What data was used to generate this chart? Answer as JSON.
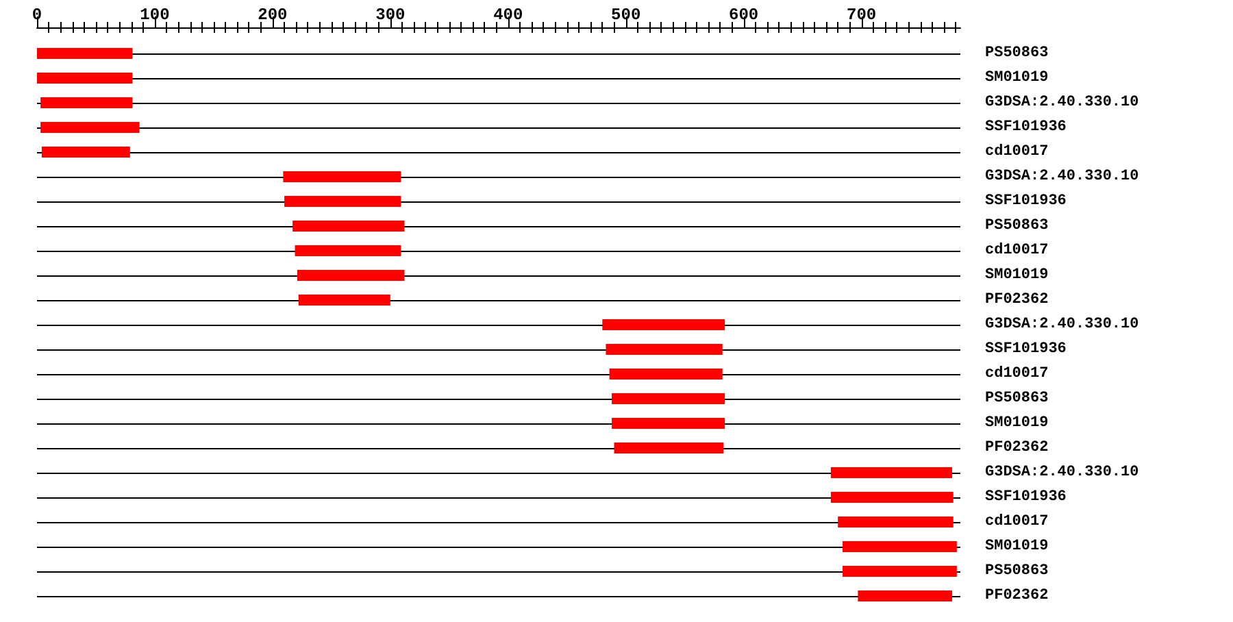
{
  "chart_data": {
    "type": "bar",
    "orientation": "horizontal",
    "categories": [
      "PS50863",
      "SM01019",
      "G3DSA:2.40.330.10",
      "SSF101936",
      "cd10017",
      "G3DSA:2.40.330.10",
      "SSF101936",
      "PS50863",
      "cd10017",
      "SM01019",
      "PF02362",
      "G3DSA:2.40.330.10",
      "SSF101936",
      "cd10017",
      "PS50863",
      "SM01019",
      "PF02362",
      "G3DSA:2.40.330.10",
      "SSF101936",
      "cd10017",
      "SM01019",
      "PS50863",
      "PF02362"
    ],
    "base": [
      0,
      0,
      3,
      3,
      4,
      209,
      210,
      217,
      219,
      221,
      222,
      480,
      483,
      486,
      488,
      488,
      490,
      674,
      674,
      680,
      684,
      684,
      697
    ],
    "values": [
      81,
      81,
      78,
      84,
      75,
      100,
      99,
      95,
      90,
      91,
      78,
      104,
      99,
      96,
      96,
      96,
      93,
      103,
      104,
      98,
      97,
      97,
      80
    ],
    "color": "#ff0000",
    "xlim": [
      0,
      784
    ],
    "xticks": [
      0,
      {
        "value": 10,
        "label": null
      },
      {
        "value": 20,
        "label": null
      },
      {
        "value": 30,
        "label": null
      },
      {
        "value": 40,
        "label": null
      },
      {
        "value": 50,
        "label": null
      },
      {
        "value": 60,
        "label": null
      },
      {
        "value": 70,
        "label": null
      },
      {
        "value": 80,
        "label": null
      },
      {
        "value": 90,
        "label": null
      },
      100,
      {
        "value": 110,
        "label": null
      },
      {
        "value": 120,
        "label": null
      },
      {
        "value": 130,
        "label": null
      },
      {
        "value": 140,
        "label": null
      },
      {
        "value": 150,
        "label": null
      },
      {
        "value": 160,
        "label": null
      },
      {
        "value": 170,
        "label": null
      },
      {
        "value": 180,
        "label": null
      },
      {
        "value": 190,
        "label": null
      },
      200,
      {
        "value": 210,
        "label": null
      },
      {
        "value": 220,
        "label": null
      },
      {
        "value": 230,
        "label": null
      },
      {
        "value": 240,
        "label": null
      },
      {
        "value": 250,
        "label": null
      },
      {
        "value": 260,
        "label": null
      },
      {
        "value": 270,
        "label": null
      },
      {
        "value": 280,
        "label": null
      },
      {
        "value": 290,
        "label": null
      },
      300,
      {
        "value": 310,
        "label": null
      },
      {
        "value": 320,
        "label": null
      },
      {
        "value": 330,
        "label": null
      },
      {
        "value": 340,
        "label": null
      },
      {
        "value": 350,
        "label": null
      },
      {
        "value": 360,
        "label": null
      },
      {
        "value": 370,
        "label": null
      },
      {
        "value": 380,
        "label": null
      },
      {
        "value": 390,
        "label": null
      },
      400,
      {
        "value": 410,
        "label": null
      },
      {
        "value": 420,
        "label": null
      },
      {
        "value": 430,
        "label": null
      },
      {
        "value": 440,
        "label": null
      },
      {
        "value": 450,
        "label": null
      },
      {
        "value": 460,
        "label": null
      },
      {
        "value": 470,
        "label": null
      },
      {
        "value": 480,
        "label": null
      },
      {
        "value": 490,
        "label": null
      },
      500,
      {
        "value": 510,
        "label": null
      },
      {
        "value": 520,
        "label": null
      },
      {
        "value": 530,
        "label": null
      },
      {
        "value": 540,
        "label": null
      },
      {
        "value": 550,
        "label": null
      },
      {
        "value": 560,
        "label": null
      },
      {
        "value": 570,
        "label": null
      },
      {
        "value": 580,
        "label": null
      },
      {
        "value": 590,
        "label": null
      },
      600,
      {
        "value": 610,
        "label": null
      },
      {
        "value": 620,
        "label": null
      },
      {
        "value": 630,
        "label": null
      },
      {
        "value": 640,
        "label": null
      },
      {
        "value": 650,
        "label": null
      },
      {
        "value": 660,
        "label": null
      },
      {
        "value": 670,
        "label": null
      },
      {
        "value": 680,
        "label": null
      },
      {
        "value": 690,
        "label": null
      },
      700,
      {
        "value": 710,
        "label": null
      },
      {
        "value": 720,
        "label": null
      },
      {
        "value": 730,
        "label": null
      },
      {
        "value": 740,
        "label": null
      },
      {
        "value": 750,
        "label": null
      },
      {
        "value": 760,
        "label": null
      },
      {
        "value": 770,
        "label": null
      },
      {
        "value": 780,
        "label": null
      }
    ],
    "grid": "y"
  }
}
